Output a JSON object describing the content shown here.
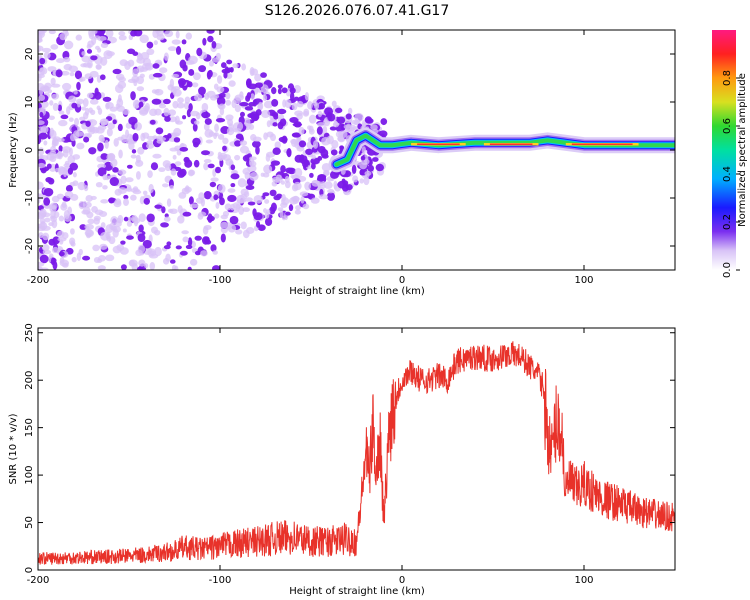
{
  "title": "S126.2026.076.07.41.G17",
  "top_panel": {
    "xlabel": "Height of straight line (km)",
    "ylabel": "Frequency (Hz)",
    "colorbar_label": "Normalized spectral amplitude"
  },
  "bottom_panel": {
    "xlabel": "Height of straight line (km)",
    "ylabel": "SNR (10 * v/v)"
  },
  "chart_data": [
    {
      "type": "heatmap",
      "title": "S126.2026.076.07.41.G17",
      "xlabel": "Height of straight line (km)",
      "ylabel": "Frequency (Hz)",
      "xlim": [
        -200,
        150
      ],
      "ylim": [
        -25,
        25
      ],
      "xticks": [
        -200,
        -100,
        0,
        100
      ],
      "yticks": [
        -20,
        -10,
        0,
        10,
        20
      ],
      "colorbar": {
        "label": "Normalized spectral amplitude",
        "range": [
          0,
          1
        ],
        "ticks": [
          "0.0",
          "0.2",
          "0.4",
          "0.6",
          "0.8"
        ]
      },
      "ridge_center_hz": [
        {
          "x": -36,
          "y": -3
        },
        {
          "x": -30,
          "y": -2
        },
        {
          "x": -25,
          "y": 2
        },
        {
          "x": -20,
          "y": 3
        },
        {
          "x": -12,
          "y": 1
        },
        {
          "x": -5,
          "y": 1
        },
        {
          "x": 5,
          "y": 1.5
        },
        {
          "x": 20,
          "y": 1
        },
        {
          "x": 40,
          "y": 1.5
        },
        {
          "x": 70,
          "y": 1.5
        },
        {
          "x": 80,
          "y": 2
        },
        {
          "x": 100,
          "y": 1
        },
        {
          "x": 150,
          "y": 1
        }
      ]
    },
    {
      "type": "line",
      "xlabel": "Height of straight line (km)",
      "ylabel": "SNR (10 * v/v)",
      "xlim": [
        -200,
        150
      ],
      "ylim": [
        0,
        255
      ],
      "xticks": [
        -200,
        -100,
        0,
        100
      ],
      "yticks": [
        0,
        50,
        100,
        150,
        200,
        250
      ],
      "color": "#e8322a",
      "series": [
        {
          "name": "SNR",
          "x": [
            -200,
            -180,
            -160,
            -140,
            -125,
            -120,
            -110,
            -100,
            -90,
            -80,
            -70,
            -60,
            -50,
            -40,
            -35,
            -30,
            -25,
            -22,
            -20,
            -18,
            -16,
            -14,
            -12,
            -10,
            -7,
            -5,
            -2,
            0,
            5,
            10,
            15,
            20,
            25,
            30,
            40,
            50,
            60,
            65,
            70,
            75,
            78,
            80,
            82,
            85,
            88,
            90,
            92,
            95,
            100,
            110,
            120,
            130,
            140,
            150
          ],
          "y": [
            12,
            13,
            14,
            16,
            20,
            24,
            22,
            25,
            28,
            30,
            33,
            35,
            30,
            30,
            31,
            33,
            30,
            80,
            125,
            100,
            150,
            105,
            140,
            50,
            150,
            170,
            190,
            200,
            210,
            200,
            200,
            205,
            200,
            220,
            225,
            222,
            228,
            225,
            215,
            205,
            190,
            145,
            120,
            160,
            140,
            80,
            95,
            85,
            90,
            75,
            70,
            62,
            58,
            55
          ]
        }
      ]
    }
  ]
}
